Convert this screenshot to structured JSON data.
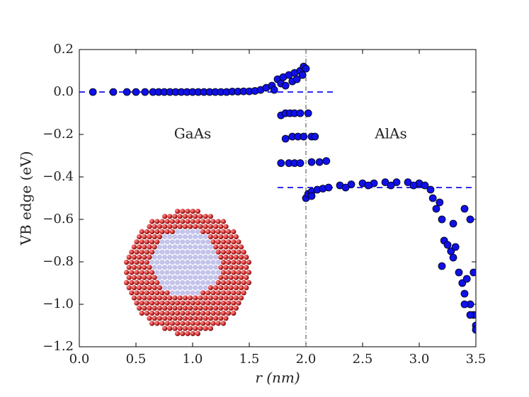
{
  "chart_data": {
    "type": "scatter",
    "x_label": "r (nm)",
    "y_label": "VB edge (eV)",
    "annotations": [
      "GaAs",
      "AlAs"
    ],
    "color": "#1010e8",
    "xlim": [
      0.0,
      3.5
    ],
    "xticks": [
      {
        "value": 0,
        "label": "0.0"
      },
      0.5,
      {
        "value": 1,
        "label": "1.0"
      },
      1.5,
      {
        "value": 2,
        "label": "2.0"
      },
      2.5,
      {
        "value": 3,
        "label": "3.0"
      },
      3.5
    ],
    "ylim": [
      -1.2,
      0.2
    ],
    "yticks": [
      {
        "value": -1.2,
        "label": "−1.2"
      },
      {
        "value": -1.0,
        "label": "−1.0"
      },
      {
        "value": -0.8,
        "label": "−0.8"
      },
      {
        "value": -0.6,
        "label": "−0.6"
      },
      {
        "value": -0.4,
        "label": "−0.4"
      },
      {
        "value": -0.2,
        "label": "−0.2"
      },
      {
        "value": 0,
        "label": "0.0"
      },
      0.2
    ],
    "hlines": [
      {
        "y": 0,
        "xmin": 0,
        "xmax": 2.25
      },
      {
        "y": -0.45,
        "xmin": 1.75,
        "xmax": 3.5
      }
    ],
    "vline": 2.0,
    "x": [
      0.12,
      0.3,
      0.42,
      0.5,
      0.58,
      0.65,
      0.7,
      0.75,
      0.8,
      0.85,
      0.9,
      0.95,
      1.0,
      1.05,
      1.1,
      1.15,
      1.2,
      1.25,
      1.3,
      1.35,
      1.4,
      1.45,
      1.5,
      1.55,
      1.6,
      1.65,
      1.7,
      1.72,
      1.75,
      1.78,
      1.8,
      1.82,
      1.85,
      1.88,
      1.9,
      1.92,
      1.95,
      1.97,
      1.98,
      2.0,
      1.78,
      1.82,
      1.86,
      1.9,
      1.95,
      2.02,
      1.82,
      1.88,
      1.93,
      1.98,
      2.05,
      2.08,
      1.78,
      1.85,
      1.9,
      1.95,
      2.05,
      2.12,
      2.18,
      2.0,
      2.02,
      2.05,
      2.1,
      2.15,
      2.2,
      2.3,
      2.4,
      2.5,
      2.6,
      2.7,
      2.8,
      2.9,
      3.0,
      3.05,
      3.1,
      3.12,
      3.15,
      3.18,
      3.2,
      3.22,
      3.25,
      3.28,
      3.3,
      3.32,
      3.35,
      3.38,
      3.4,
      3.42,
      3.45,
      3.48,
      3.5,
      3.4,
      3.45,
      3.2,
      3.3,
      3.48,
      3.5,
      3.45,
      3.4,
      2.35,
      2.55,
      2.75,
      2.95,
      2.05
    ],
    "values": [
      0,
      0,
      0,
      0,
      0,
      0,
      0,
      0,
      0,
      0,
      0,
      0,
      0,
      0,
      0,
      0,
      0,
      0,
      0,
      0.002,
      0.002,
      0.003,
      0.003,
      0.005,
      0.01,
      0.02,
      0.03,
      0.01,
      0.06,
      0.04,
      0.07,
      0.03,
      0.08,
      0.05,
      0.09,
      0.06,
      0.1,
      0.08,
      0.12,
      0.11,
      -0.11,
      -0.1,
      -0.1,
      -0.1,
      -0.1,
      -0.1,
      -0.22,
      -0.21,
      -0.21,
      -0.21,
      -0.21,
      -0.21,
      -0.335,
      -0.335,
      -0.335,
      -0.335,
      -0.33,
      -0.33,
      -0.325,
      -0.5,
      -0.48,
      -0.47,
      -0.46,
      -0.455,
      -0.45,
      -0.44,
      -0.435,
      -0.43,
      -0.43,
      -0.425,
      -0.425,
      -0.425,
      -0.43,
      -0.44,
      -0.46,
      -0.5,
      -0.55,
      -0.52,
      -0.6,
      -0.7,
      -0.72,
      -0.75,
      -0.78,
      -0.73,
      -0.85,
      -0.9,
      -0.95,
      -0.88,
      -1.0,
      -1.05,
      -1.1,
      -0.55,
      -0.6,
      -0.82,
      -0.62,
      -0.85,
      -1.12,
      -1.05,
      -1.0,
      -0.45,
      -0.44,
      -0.44,
      -0.44,
      -0.49
    ]
  }
}
